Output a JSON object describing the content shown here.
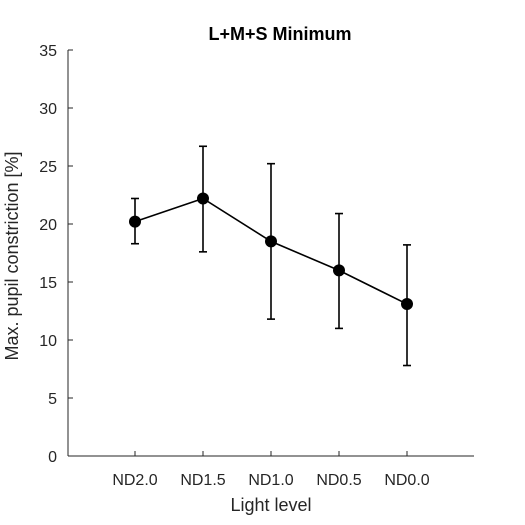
{
  "chart_data": {
    "type": "line",
    "title": "L+M+S Minimum",
    "xlabel": "Light level",
    "ylabel": "Max. pupil constriction [%]",
    "categories": [
      "ND2.0",
      "ND1.5",
      "ND1.0",
      "ND0.5",
      "ND0.0"
    ],
    "series": [
      {
        "values": [
          20.2,
          22.2,
          18.5,
          16.0,
          13.1
        ],
        "error_low": [
          18.3,
          17.6,
          11.8,
          11.0,
          7.8
        ],
        "error_high": [
          22.2,
          26.7,
          25.2,
          20.9,
          18.2
        ]
      }
    ],
    "ylim": [
      0,
      35
    ],
    "yticks": [
      0,
      5,
      10,
      15,
      20,
      25,
      30,
      35
    ],
    "grid": false,
    "legend": "none",
    "colors": {
      "line": "#000000",
      "marker": "#000000",
      "axis": "#262626"
    }
  }
}
